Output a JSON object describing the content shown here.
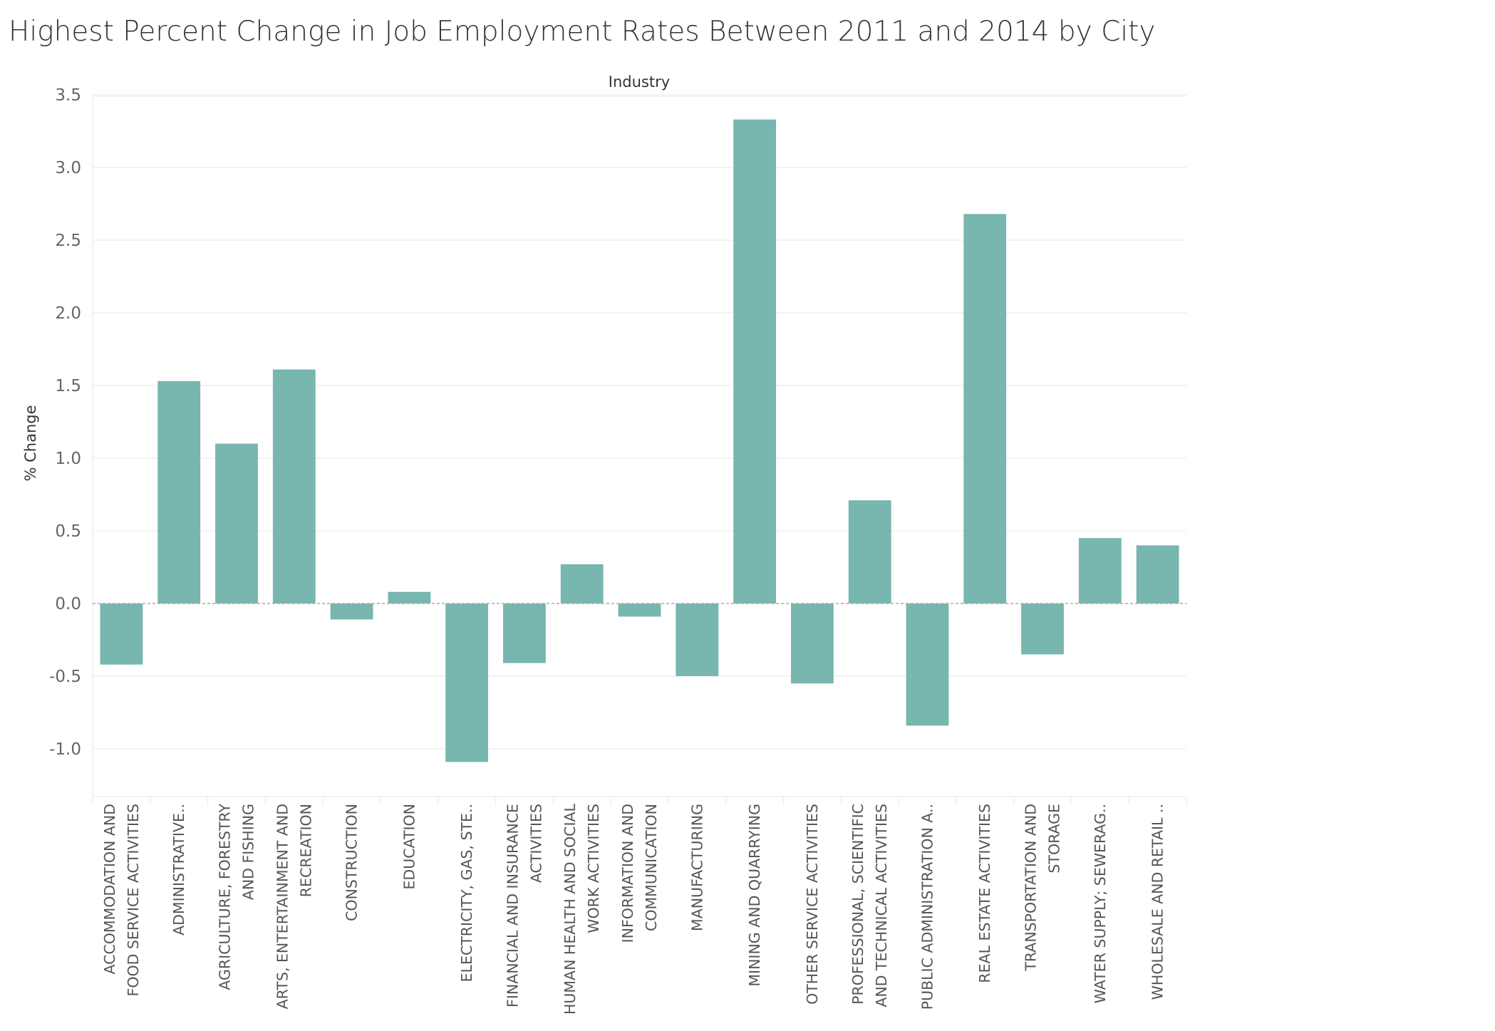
{
  "chart_data": {
    "type": "bar",
    "title": "Highest Percent Change in Job Employment Rates Between 2011 and 2014 by City",
    "xlabel": "Industry",
    "ylabel": "% Change",
    "ylim": [
      -1.3,
      3.55
    ],
    "yticks": [
      "3.5",
      "3.0",
      "2.5",
      "2.0",
      "1.5",
      "1.0",
      "0.5",
      "0.0",
      "-0.5",
      "-1.0"
    ],
    "ytick_values": [
      3.5,
      3.0,
      2.5,
      2.0,
      1.5,
      1.0,
      0.5,
      0.0,
      -0.5,
      -1.0
    ],
    "grid": true,
    "bar_color": "#78B6B0",
    "categories": [
      [
        "ACCOMMODATION AND",
        "FOOD SERVICE ACTIVITIES"
      ],
      [
        "ADMINISTRATIVE.."
      ],
      [
        "AGRICULTURE, FORESTRY",
        "AND FISHING"
      ],
      [
        "ARTS, ENTERTAINMENT AND",
        "RECREATION"
      ],
      [
        "CONSTRUCTION"
      ],
      [
        "EDUCATION"
      ],
      [
        "ELECTRICITY, GAS, STE.."
      ],
      [
        "FINANCIAL AND INSURANCE",
        "ACTIVITIES"
      ],
      [
        "HUMAN HEALTH AND SOCIAL",
        "WORK ACTIVITIES"
      ],
      [
        "INFORMATION AND",
        "COMMUNICATION"
      ],
      [
        "MANUFACTURING"
      ],
      [
        "MINING AND QUARRYING"
      ],
      [
        "OTHER SERVICE ACTIVITIES"
      ],
      [
        "PROFESSIONAL, SCIENTIFIC",
        "AND TECHNICAL ACTIVITIES"
      ],
      [
        "PUBLIC ADMINISTRATION A.."
      ],
      [
        "REAL ESTATE ACTIVITIES"
      ],
      [
        "TRANSPORTATION AND",
        "STORAGE"
      ],
      [
        "WATER SUPPLY; SEWERAG.."
      ],
      [
        "WHOLESALE AND RETAIL .."
      ]
    ],
    "values": [
      -0.42,
      1.53,
      1.1,
      1.61,
      -0.11,
      0.08,
      -1.09,
      -0.41,
      0.27,
      -0.09,
      -0.5,
      3.33,
      -0.55,
      0.71,
      -0.84,
      2.68,
      -0.35,
      0.45,
      0.4
    ]
  }
}
